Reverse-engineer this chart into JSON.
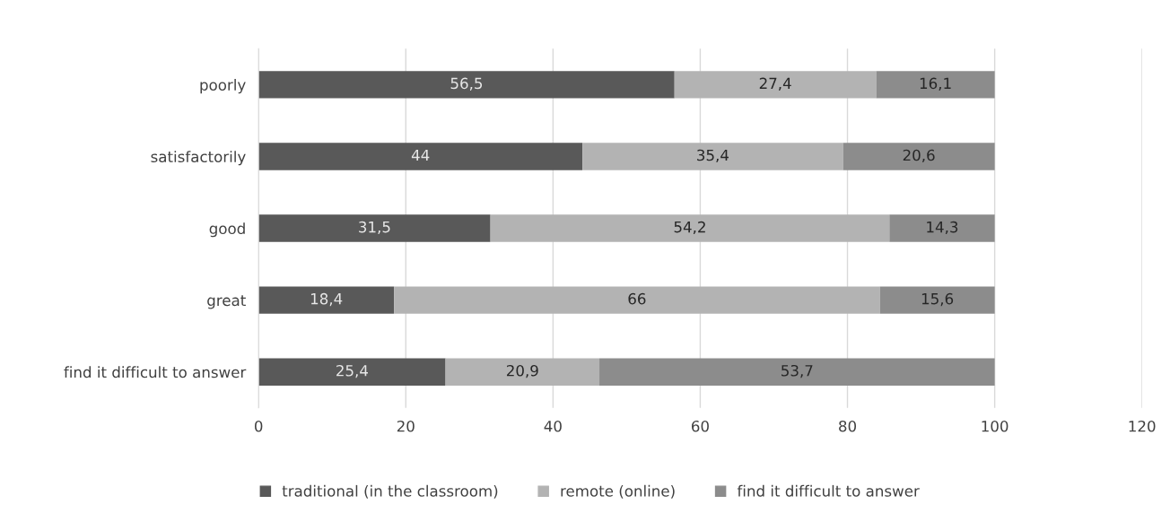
{
  "chart_data": {
    "type": "bar",
    "orientation": "horizontal",
    "stacked": true,
    "categories": [
      "poorly",
      "satisfactorily",
      "good",
      "great",
      "find it difficult to answer"
    ],
    "series": [
      {
        "name": "traditional (in the classroom)",
        "color": "#595959",
        "values": [
          56.5,
          44,
          31.5,
          18.4,
          25.4
        ],
        "value_labels": [
          "56,5",
          "44",
          "31,5",
          "18,4",
          "25,4"
        ]
      },
      {
        "name": "remote (online)",
        "color": "#b3b3b3",
        "values": [
          27.4,
          35.4,
          54.2,
          66,
          20.9
        ],
        "value_labels": [
          "27,4",
          "35,4",
          "54,2",
          "66",
          "20,9"
        ]
      },
      {
        "name": "find it difficult to answer",
        "color": "#8c8c8c",
        "values": [
          16.1,
          20.6,
          14.3,
          15.6,
          53.7
        ],
        "value_labels": [
          "16,1",
          "20,6",
          "14,3",
          "15,6",
          "53,7"
        ]
      }
    ],
    "xlim": [
      0,
      120
    ],
    "xticks": [
      0,
      20,
      40,
      60,
      80,
      100,
      120
    ],
    "grid": "x",
    "legend": "bottom"
  }
}
